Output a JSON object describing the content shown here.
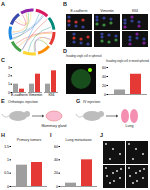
{
  "figure": {
    "panels": [
      {
        "label": "A"
      },
      {
        "label": "B",
        "columns": [
          "E-cadherin",
          "Vimentin",
          "Klf4"
        ]
      },
      {
        "label": "C"
      },
      {
        "label": "D",
        "texts": [
          "Invading single cell in spheroid"
        ]
      },
      {
        "label": "E",
        "texts": [
          "Orthotopic injection",
          "Mammary gland"
        ]
      },
      {
        "label": "G",
        "texts": [
          "IV injection",
          "Lung"
        ]
      },
      {
        "label": "H"
      },
      {
        "label": "I"
      },
      {
        "label": "J"
      }
    ]
  },
  "chart_data": [
    {
      "panel": "C",
      "type": "bar",
      "categories": [
        "E-cadherin",
        "Vimentin",
        "Klf4"
      ],
      "series": [
        {
          "color": "#9e9e9e",
          "values": [
            1,
            1,
            1
          ]
        },
        {
          "color": "#e53935",
          "values": [
            0.4,
            2.2,
            2.6
          ]
        }
      ],
      "ylim": [
        0,
        3
      ],
      "yticks": [
        0,
        1,
        2,
        3
      ]
    },
    {
      "panel": "D",
      "type": "bar",
      "title": "Invading single cell in mixed spheroid",
      "categories": [
        null,
        null
      ],
      "values": [
        10,
        45
      ],
      "colors": [
        "#9e9e9e",
        "#e53935"
      ],
      "ylim": [
        0,
        60
      ],
      "yticks": [
        0,
        20,
        40,
        60
      ],
      "tick_labels": "y"
    },
    {
      "panel": "H",
      "type": "bar",
      "title": "Primary tumors",
      "categories": [
        null,
        null
      ],
      "values": [
        0.8,
        0.9
      ],
      "colors": [
        "#9e9e9e",
        "#e53935"
      ],
      "ylim": [
        0,
        1.5
      ],
      "yticks": [
        0,
        0.5,
        1,
        1.5
      ],
      "tick_labels": "y"
    },
    {
      "panel": "I",
      "type": "bar",
      "title": "Lung metastasis",
      "categories": [
        null,
        null
      ],
      "values": [
        5,
        40
      ],
      "colors": [
        "#9e9e9e",
        "#e53935"
      ],
      "ylim": [
        0,
        60
      ],
      "yticks": [
        0,
        20,
        40,
        60
      ],
      "tick_labels": "y"
    }
  ]
}
